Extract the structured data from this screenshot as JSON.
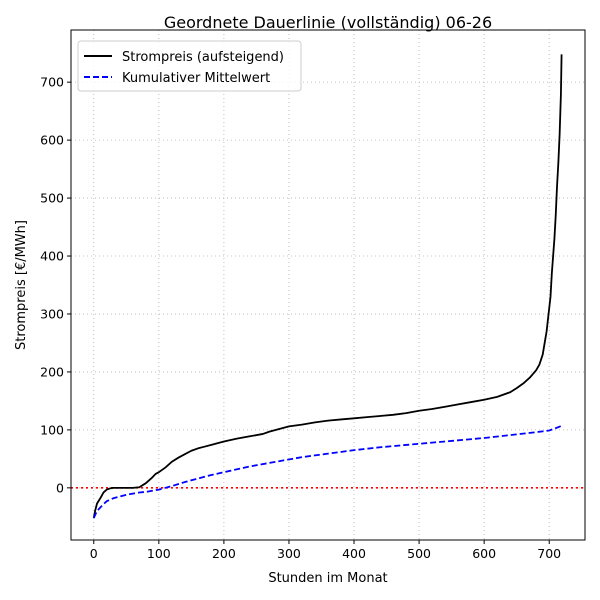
{
  "chart_data": {
    "type": "line",
    "title": "Geordnete Dauerlinie (vollständig) 06-26",
    "xlabel": "Stunden im Monat",
    "ylabel": "Strompreis [€/MWh]",
    "xlim": [
      -35,
      755
    ],
    "ylim": [
      -90,
      790
    ],
    "xticks": [
      0,
      100,
      200,
      300,
      400,
      500,
      600,
      700
    ],
    "yticks": [
      0,
      100,
      200,
      300,
      400,
      500,
      600,
      700
    ],
    "grid": true,
    "legend_position": "top-left",
    "reference_line": {
      "y": 0,
      "color": "#ff0000",
      "style": "dotted"
    },
    "series": [
      {
        "name": "Strompreis (aufsteigend)",
        "color": "#000000",
        "style": "solid",
        "x": [
          0,
          2,
          5,
          10,
          15,
          20,
          25,
          30,
          35,
          40,
          50,
          60,
          70,
          80,
          90,
          95,
          100,
          110,
          120,
          130,
          140,
          150,
          160,
          170,
          180,
          190,
          200,
          220,
          240,
          260,
          270,
          280,
          300,
          320,
          340,
          360,
          380,
          400,
          420,
          440,
          460,
          480,
          500,
          520,
          540,
          560,
          580,
          600,
          620,
          640,
          650,
          660,
          670,
          680,
          685,
          690,
          693,
          696,
          698,
          700,
          702,
          704,
          706,
          708,
          710,
          712,
          714,
          716,
          718,
          719
        ],
        "y": [
          -52,
          -40,
          -27,
          -18,
          -8,
          -3,
          -1,
          0,
          0,
          0,
          0,
          0,
          1,
          8,
          18,
          24,
          27,
          35,
          45,
          52,
          58,
          64,
          68,
          71,
          74,
          77,
          80,
          85,
          89,
          93,
          97,
          100,
          106,
          109,
          113,
          116,
          118,
          120,
          122,
          124,
          126,
          129,
          133,
          136,
          140,
          144,
          148,
          152,
          157,
          165,
          172,
          180,
          190,
          203,
          213,
          230,
          250,
          270,
          290,
          310,
          330,
          370,
          400,
          430,
          470,
          520,
          560,
          610,
          680,
          748
        ]
      },
      {
        "name": "Kumulativer Mittelwert",
        "color": "#0000ff",
        "style": "dashed",
        "x": [
          0,
          5,
          10,
          15,
          20,
          30,
          40,
          50,
          60,
          70,
          80,
          90,
          100,
          120,
          140,
          160,
          180,
          200,
          240,
          280,
          320,
          360,
          400,
          440,
          480,
          520,
          560,
          600,
          640,
          680,
          700,
          710,
          719
        ],
        "y": [
          -52,
          -40,
          -34,
          -28,
          -23,
          -18,
          -15,
          -12,
          -10,
          -8,
          -7,
          -5,
          -3,
          3,
          10,
          16,
          22,
          27,
          37,
          45,
          53,
          59,
          65,
          70,
          74,
          78,
          82,
          86,
          91,
          96,
          99,
          103,
          107
        ]
      }
    ]
  }
}
